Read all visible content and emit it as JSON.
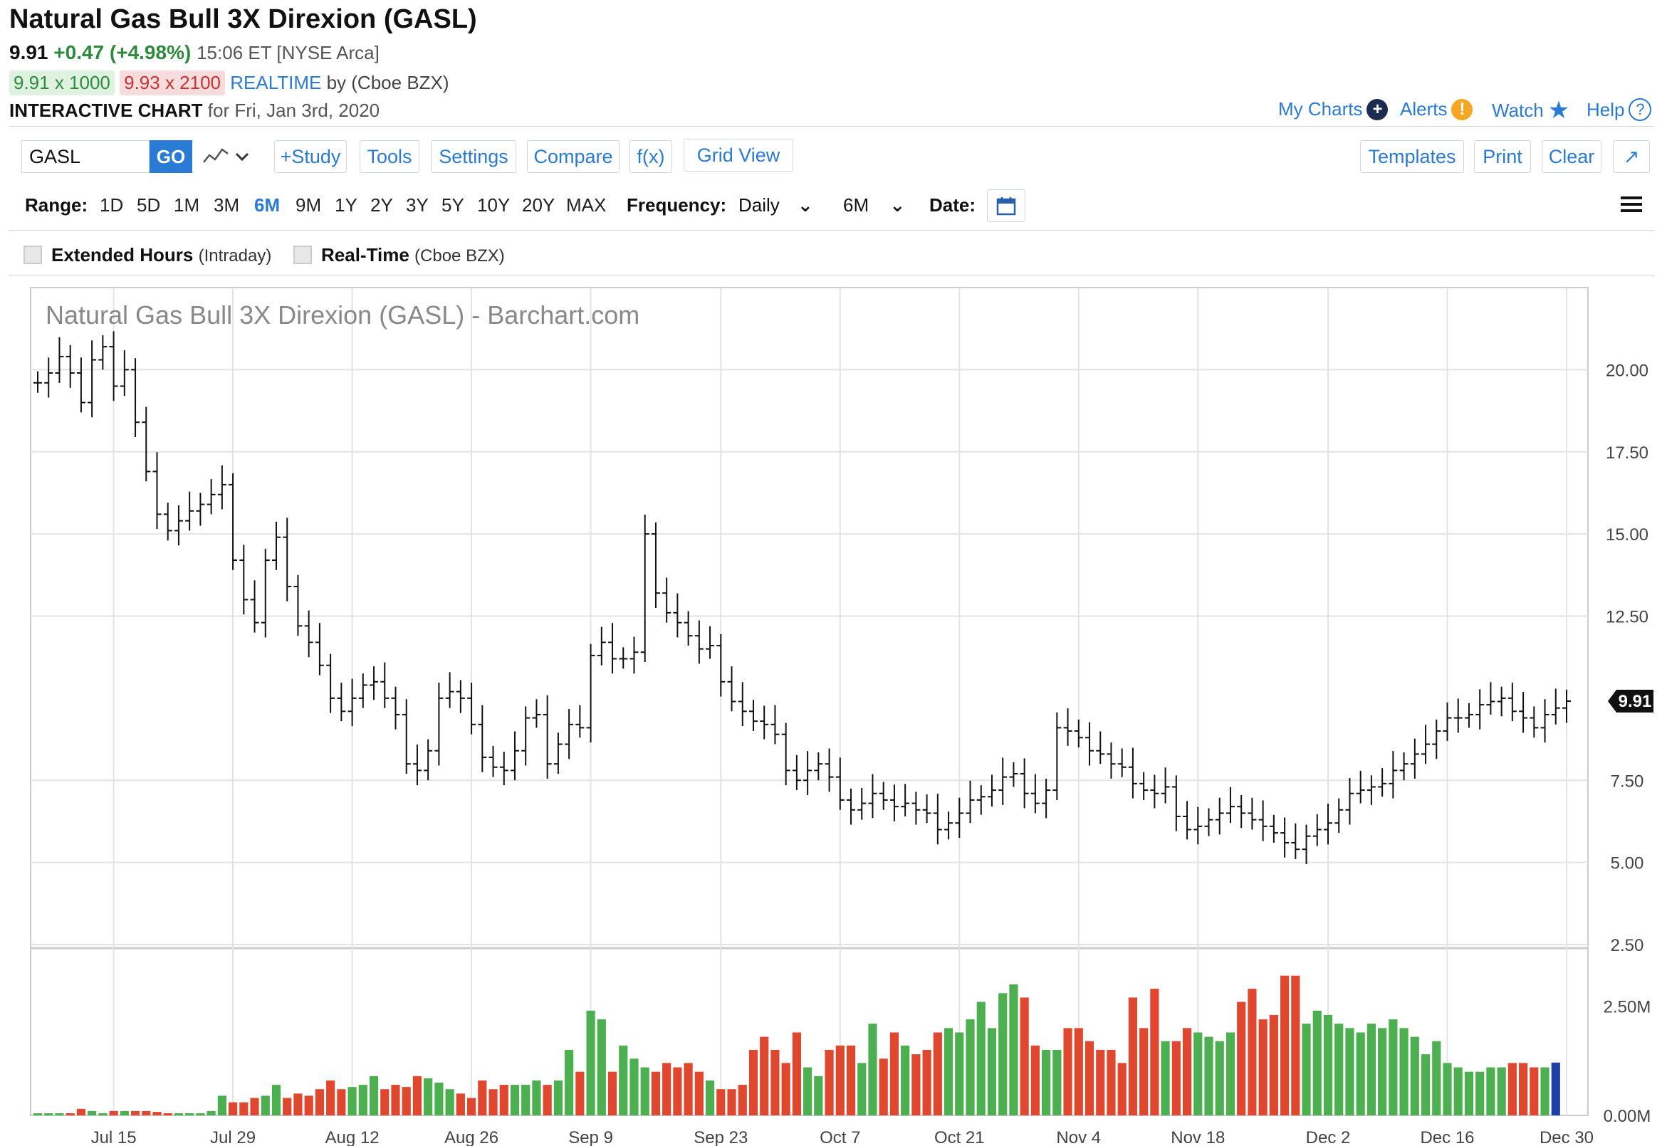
{
  "header": {
    "title": "Natural Gas Bull 3X Direxion (GASL)",
    "last": "9.91",
    "change": "+0.47 (+4.98%)",
    "time_exchange": "15:06 ET [NYSE Arca]",
    "bid": "9.91 x 1000",
    "ask": "9.93 x 2100",
    "realtime": "REALTIME",
    "realtime_by": "by (Cboe BZX)",
    "interactive_label": "INTERACTIVE CHART",
    "interactive_date": "for Fri, Jan 3rd, 2020"
  },
  "top_links": {
    "my_charts": "My Charts",
    "alerts": "Alerts",
    "watch": "Watch",
    "help": "Help"
  },
  "toolbar": {
    "symbol": "GASL",
    "go": "GO",
    "study": "+Study",
    "tools": "Tools",
    "settings": "Settings",
    "compare": "Compare",
    "fx": "f(x)",
    "grid_view": "Grid View",
    "templates": "Templates",
    "print": "Print",
    "clear": "Clear"
  },
  "range": {
    "label": "Range:",
    "options": [
      "1D",
      "5D",
      "1M",
      "3M",
      "6M",
      "9M",
      "1Y",
      "2Y",
      "3Y",
      "5Y",
      "10Y",
      "20Y",
      "MAX"
    ],
    "active": "6M",
    "frequency_label": "Frequency:",
    "frequency_value": "Daily",
    "period_value": "6M",
    "date_label": "Date:"
  },
  "options": {
    "extended_hours": "Extended Hours",
    "extended_hours_note": "(Intraday)",
    "real_time": "Real-Time",
    "real_time_note": "(Cboe BZX)"
  },
  "colors": {
    "up_volume": "#4caf50",
    "down_volume": "#e0472f",
    "current_volume": "#1f3fa8",
    "link": "#2a7bd3",
    "price_bar": "#111111"
  },
  "chart_data": {
    "type": "ohlc",
    "title": "Natural Gas Bull 3X Direxion (GASL) - Barchart.com",
    "x_tick_labels": [
      "Jul 15",
      "Jul 29",
      "Aug 12",
      "Aug 26",
      "Sep 9",
      "Sep 23",
      "Oct 7",
      "Oct 21",
      "Nov 4",
      "Nov 18",
      "Dec 2",
      "Dec 16",
      "Dec 30"
    ],
    "y_ticks": [
      "20.00",
      "17.50",
      "15.00",
      "12.50",
      "7.50",
      "5.00",
      "2.50"
    ],
    "ylim": [
      2.5,
      22.5
    ],
    "last_price_label": "9.91",
    "close_values": [
      19.6,
      19.9,
      20.4,
      19.9,
      19.0,
      20.3,
      20.7,
      19.5,
      20.0,
      18.4,
      16.9,
      15.6,
      15.1,
      15.4,
      15.7,
      15.9,
      16.2,
      16.5,
      14.2,
      13.0,
      12.3,
      14.2,
      14.9,
      13.4,
      12.2,
      11.7,
      11.0,
      10.0,
      9.6,
      10.0,
      10.4,
      10.5,
      10.0,
      9.5,
      8.0,
      7.8,
      8.4,
      10.0,
      10.2,
      10.0,
      9.2,
      8.2,
      7.9,
      7.8,
      8.4,
      9.4,
      9.5,
      8.0,
      8.6,
      9.2,
      9.1,
      11.3,
      11.7,
      11.2,
      11.2,
      11.4,
      15.0,
      13.2,
      12.6,
      12.3,
      11.9,
      11.5,
      11.6,
      10.5,
      9.9,
      9.6,
      9.3,
      9.2,
      8.9,
      7.8,
      7.5,
      7.8,
      8.0,
      7.6,
      6.9,
      6.6,
      6.8,
      7.1,
      6.9,
      6.7,
      6.8,
      6.6,
      6.5,
      6.0,
      6.2,
      6.5,
      6.9,
      7.0,
      7.2,
      7.6,
      7.7,
      7.1,
      6.8,
      7.2,
      9.1,
      9.0,
      8.8,
      8.4,
      8.3,
      8.0,
      7.9,
      7.4,
      7.2,
      7.1,
      7.3,
      6.4,
      6.0,
      6.1,
      6.3,
      6.5,
      6.7,
      6.5,
      6.3,
      6.1,
      5.9,
      5.6,
      5.4,
      5.8,
      6.0,
      6.2,
      6.6,
      7.1,
      7.2,
      7.3,
      7.4,
      7.8,
      8.0,
      8.3,
      8.6,
      9.0,
      9.4,
      9.4,
      9.5,
      9.8,
      9.9,
      10.0,
      9.6,
      9.4,
      9.1,
      9.5,
      9.7,
      9.91
    ],
    "volume_ylim": [
      0,
      3750000
    ],
    "volume_ticks": [
      "2.50M",
      "0.00M"
    ],
    "current_volume_label": "1.21M",
    "volume_values": [
      0.05,
      0.05,
      0.05,
      0.05,
      0.15,
      0.1,
      0.05,
      0.1,
      0.1,
      0.1,
      0.1,
      0.08,
      0.05,
      0.05,
      0.05,
      0.05,
      0.1,
      0.45,
      0.3,
      0.3,
      0.4,
      0.45,
      0.7,
      0.4,
      0.5,
      0.45,
      0.6,
      0.8,
      0.6,
      0.65,
      0.7,
      0.9,
      0.6,
      0.7,
      0.65,
      0.9,
      0.85,
      0.75,
      0.6,
      0.5,
      0.4,
      0.8,
      0.6,
      0.7,
      0.7,
      0.7,
      0.8,
      0.7,
      0.8,
      1.5,
      1.0,
      2.4,
      2.2,
      1.0,
      1.6,
      1.3,
      1.1,
      1.0,
      1.2,
      1.1,
      1.2,
      1.0,
      0.8,
      0.6,
      0.6,
      0.7,
      1.5,
      1.8,
      1.5,
      1.2,
      1.9,
      1.1,
      0.9,
      1.5,
      1.6,
      1.6,
      1.2,
      2.1,
      1.3,
      1.9,
      1.6,
      1.4,
      1.5,
      1.9,
      2.0,
      1.9,
      2.2,
      2.6,
      2.0,
      2.8,
      3.0,
      2.7,
      1.6,
      1.5,
      1.5,
      2.0,
      2.0,
      1.7,
      1.5,
      1.5,
      1.2,
      2.7,
      2.0,
      2.9,
      1.7,
      1.7,
      2.0,
      1.9,
      1.8,
      1.7,
      1.9,
      2.6,
      2.9,
      2.2,
      2.3,
      3.2,
      3.2,
      2.1,
      2.4,
      2.3,
      2.1,
      2.0,
      1.9,
      2.1,
      2.0,
      2.2,
      2.0,
      1.8,
      1.4,
      1.7,
      1.2,
      1.1,
      1.0,
      1.0,
      1.1,
      1.1,
      1.2,
      1.2,
      1.1,
      1.1,
      1.21
    ]
  }
}
